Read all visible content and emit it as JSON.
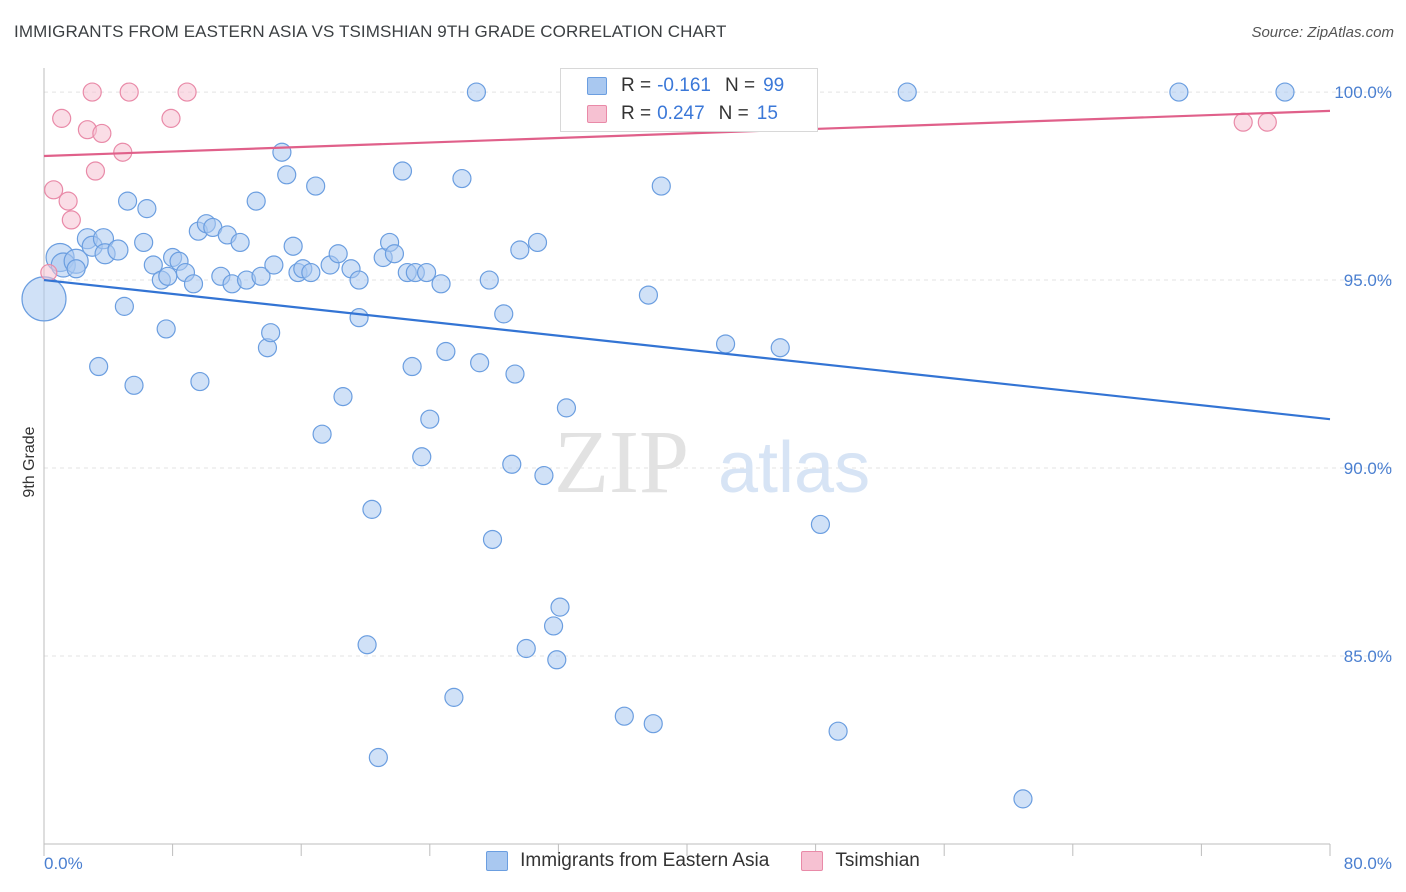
{
  "header": {
    "title": "IMMIGRANTS FROM EASTERN ASIA VS TSIMSHIAN 9TH GRADE CORRELATION CHART",
    "source": "Source: ZipAtlas.com"
  },
  "watermark": {
    "zip": "ZIP",
    "atlas": "atlas"
  },
  "legend": {
    "r_label": "R =",
    "n_label": "N =",
    "rows": [
      {
        "r": "-0.161",
        "n": "99"
      },
      {
        "r": "0.247",
        "n": "15"
      }
    ]
  },
  "colors": {
    "blue_fill": "#a9c8f0",
    "blue_stroke": "#6b9ee0",
    "blue_line": "#3374d4",
    "pink_fill": "#f6c1d2",
    "pink_stroke": "#e98aa8",
    "pink_line": "#e0608a",
    "grid": "#e3e3e3",
    "axis_text": "#4a7fd0"
  },
  "chart_data": {
    "type": "scatter",
    "title": "IMMIGRANTS FROM EASTERN ASIA VS TSIMSHIAN 9TH GRADE CORRELATION CHART",
    "xlabel": "",
    "ylabel": "9th Grade",
    "xlim": [
      0,
      80
    ],
    "ylim": [
      80,
      100.8
    ],
    "x_tick_labels": [
      "0.0%",
      "80.0%"
    ],
    "y_ticks": [
      85,
      90,
      95,
      100
    ],
    "y_tick_labels": [
      "85.0%",
      "90.0%",
      "95.0%",
      "100.0%"
    ],
    "grid": true,
    "legend_position": "bottom",
    "series": [
      {
        "name": "Immigrants from Eastern Asia",
        "R": -0.161,
        "N": 99,
        "trend": {
          "x0": 0,
          "y0": 95.0,
          "x1": 80,
          "y1": 91.3
        },
        "points": [
          [
            0.0,
            94.5,
            22
          ],
          [
            1.0,
            95.6,
            14
          ],
          [
            1.2,
            95.4,
            12
          ],
          [
            2.0,
            95.5,
            12
          ],
          [
            2.7,
            96.1,
            10
          ],
          [
            3.0,
            95.9,
            10
          ],
          [
            3.7,
            96.1,
            10
          ],
          [
            3.8,
            95.7,
            10
          ],
          [
            4.6,
            95.8,
            10
          ],
          [
            3.4,
            92.7,
            9
          ],
          [
            5.0,
            94.3,
            9
          ],
          [
            5.2,
            97.1,
            9
          ],
          [
            5.6,
            92.2,
            9
          ],
          [
            6.2,
            96.0,
            9
          ],
          [
            6.4,
            96.9,
            9
          ],
          [
            6.8,
            95.4,
            9
          ],
          [
            7.3,
            95.0,
            9
          ],
          [
            7.6,
            93.7,
            9
          ],
          [
            8.0,
            95.6,
            9
          ],
          [
            8.4,
            95.5,
            9
          ],
          [
            8.8,
            95.2,
            9
          ],
          [
            9.3,
            94.9,
            9
          ],
          [
            9.7,
            92.3,
            9
          ],
          [
            9.6,
            96.3,
            9
          ],
          [
            10.1,
            96.5,
            9
          ],
          [
            10.5,
            96.4,
            9
          ],
          [
            11.0,
            95.1,
            9
          ],
          [
            11.4,
            96.2,
            9
          ],
          [
            11.7,
            94.9,
            9
          ],
          [
            12.2,
            96.0,
            9
          ],
          [
            12.6,
            95.0,
            9
          ],
          [
            13.2,
            97.1,
            9
          ],
          [
            13.5,
            95.1,
            9
          ],
          [
            13.9,
            93.2,
            9
          ],
          [
            14.1,
            93.6,
            9
          ],
          [
            14.8,
            98.4,
            9
          ],
          [
            15.1,
            97.8,
            9
          ],
          [
            15.5,
            95.9,
            9
          ],
          [
            15.8,
            95.2,
            9
          ],
          [
            16.1,
            95.3,
            9
          ],
          [
            16.6,
            95.2,
            9
          ],
          [
            16.9,
            97.5,
            9
          ],
          [
            17.3,
            90.9,
            9
          ],
          [
            17.8,
            95.4,
            9
          ],
          [
            18.3,
            95.7,
            9
          ],
          [
            18.6,
            91.9,
            9
          ],
          [
            19.1,
            95.3,
            9
          ],
          [
            19.6,
            94.0,
            9
          ],
          [
            20.4,
            88.9,
            9
          ],
          [
            20.1,
            85.3,
            9
          ],
          [
            20.8,
            82.3,
            9
          ],
          [
            21.1,
            95.6,
            9
          ],
          [
            21.5,
            96.0,
            9
          ],
          [
            21.8,
            95.7,
            9
          ],
          [
            22.3,
            97.9,
            9
          ],
          [
            22.6,
            95.2,
            9
          ],
          [
            22.9,
            92.7,
            9
          ],
          [
            23.1,
            95.2,
            9
          ],
          [
            23.5,
            90.3,
            9
          ],
          [
            24.0,
            91.3,
            9
          ],
          [
            24.7,
            94.9,
            9
          ],
          [
            25.0,
            93.1,
            9
          ],
          [
            25.5,
            83.9,
            9
          ],
          [
            26.0,
            97.7,
            9
          ],
          [
            26.9,
            100.0,
            9
          ],
          [
            27.1,
            92.8,
            9
          ],
          [
            27.7,
            95.0,
            9
          ],
          [
            27.9,
            88.1,
            9
          ],
          [
            28.6,
            94.1,
            9
          ],
          [
            29.1,
            90.1,
            9
          ],
          [
            29.3,
            92.5,
            9
          ],
          [
            29.6,
            95.8,
            9
          ],
          [
            30.0,
            85.2,
            9
          ],
          [
            30.7,
            96.0,
            9
          ],
          [
            31.1,
            89.8,
            9
          ],
          [
            31.7,
            85.8,
            9
          ],
          [
            31.9,
            84.9,
            9
          ],
          [
            32.1,
            86.3,
            9
          ],
          [
            32.5,
            91.6,
            9
          ],
          [
            34.1,
            100.0,
            9
          ],
          [
            36.1,
            83.4,
            9
          ],
          [
            37.2,
            100.0,
            9
          ],
          [
            37.6,
            94.6,
            9
          ],
          [
            37.9,
            83.2,
            9
          ],
          [
            38.4,
            97.5,
            9
          ],
          [
            42.4,
            93.3,
            9
          ],
          [
            43.1,
            100.0,
            9
          ],
          [
            45.8,
            93.2,
            9
          ],
          [
            48.3,
            88.5,
            9
          ],
          [
            49.4,
            83.0,
            9
          ],
          [
            53.7,
            100.0,
            9
          ],
          [
            60.9,
            81.2,
            9
          ],
          [
            70.6,
            100.0,
            9
          ],
          [
            77.2,
            100.0,
            9
          ],
          [
            23.8,
            95.2,
            9
          ],
          [
            14.3,
            95.4,
            9
          ],
          [
            7.7,
            95.1,
            9
          ],
          [
            2.0,
            95.3,
            9
          ],
          [
            19.6,
            95.0,
            9
          ]
        ]
      },
      {
        "name": "Tsimshian",
        "R": 0.247,
        "N": 15,
        "trend": {
          "x0": 0,
          "y0": 98.3,
          "x1": 80,
          "y1": 99.5
        },
        "points": [
          [
            0.3,
            95.2,
            8
          ],
          [
            0.6,
            97.4,
            9
          ],
          [
            1.1,
            99.3,
            9
          ],
          [
            1.5,
            97.1,
            9
          ],
          [
            1.7,
            96.6,
            9
          ],
          [
            2.7,
            99.0,
            9
          ],
          [
            3.0,
            100.0,
            9
          ],
          [
            3.2,
            97.9,
            9
          ],
          [
            3.6,
            98.9,
            9
          ],
          [
            4.9,
            98.4,
            9
          ],
          [
            5.3,
            100.0,
            9
          ],
          [
            7.9,
            99.3,
            9
          ],
          [
            8.9,
            100.0,
            9
          ],
          [
            74.6,
            99.2,
            9
          ],
          [
            76.1,
            99.2,
            9
          ]
        ]
      }
    ]
  }
}
